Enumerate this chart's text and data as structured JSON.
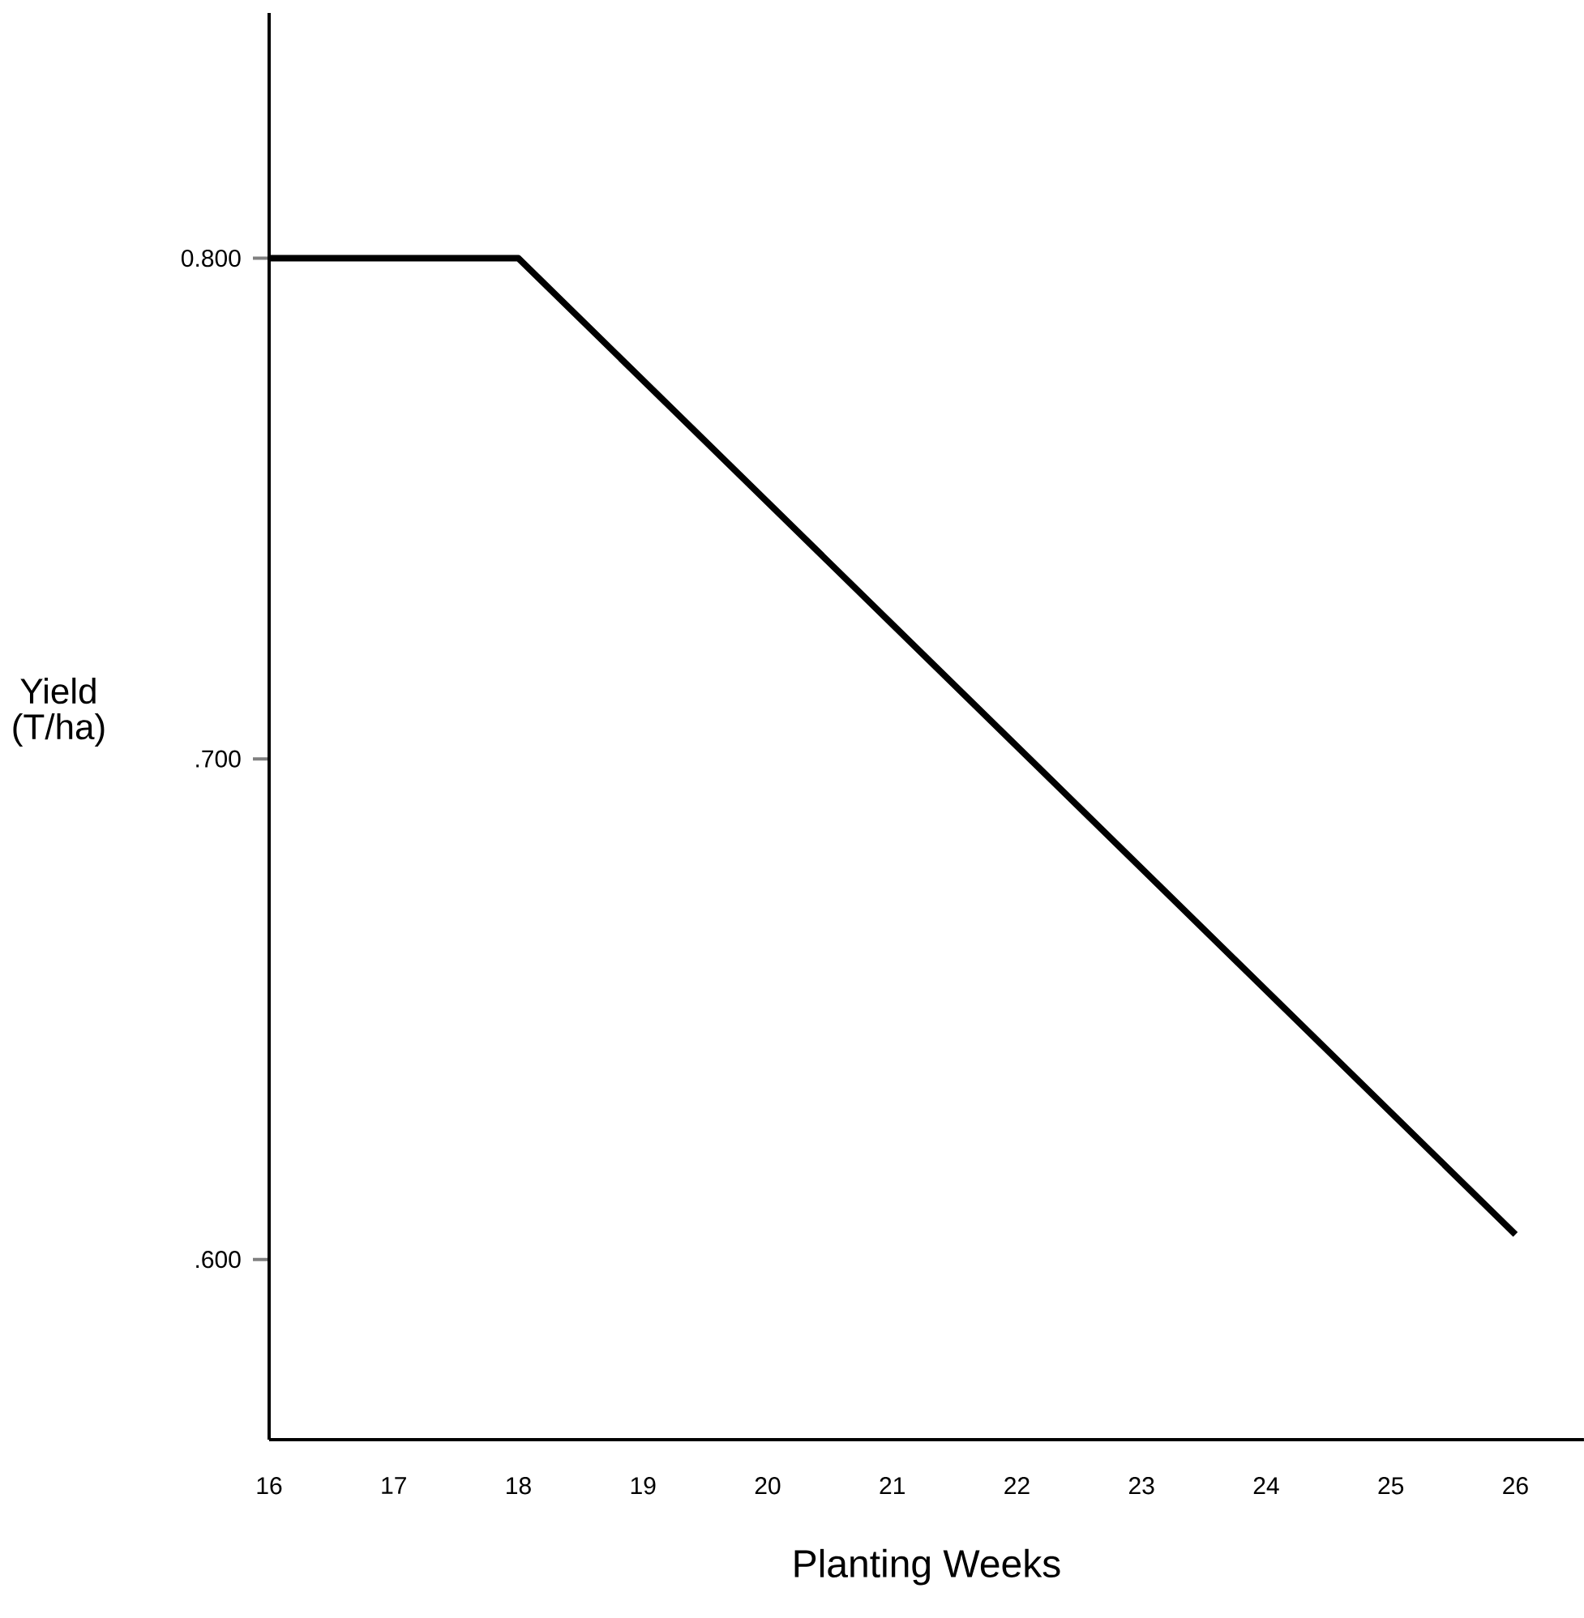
{
  "chart_data": {
    "type": "line",
    "xlabel": "Planting Weeks",
    "ylabel": "Yield (T/ha)",
    "x": [
      16,
      18,
      26
    ],
    "values": [
      0.8,
      0.8,
      0.605
    ],
    "color": "#000000",
    "marker": "none",
    "line_style": "solid",
    "xlim": [
      16,
      26.55
    ],
    "ylim": [
      0.564,
      0.849
    ],
    "xticks": [
      16,
      17,
      18,
      19,
      20,
      21,
      22,
      23,
      24,
      25,
      26
    ],
    "yticks": [
      {
        "value": 0.8,
        "label": "0.800"
      },
      {
        "value": 0.7,
        "label": ".700"
      },
      {
        "value": 0.6,
        "label": ".600"
      }
    ]
  }
}
